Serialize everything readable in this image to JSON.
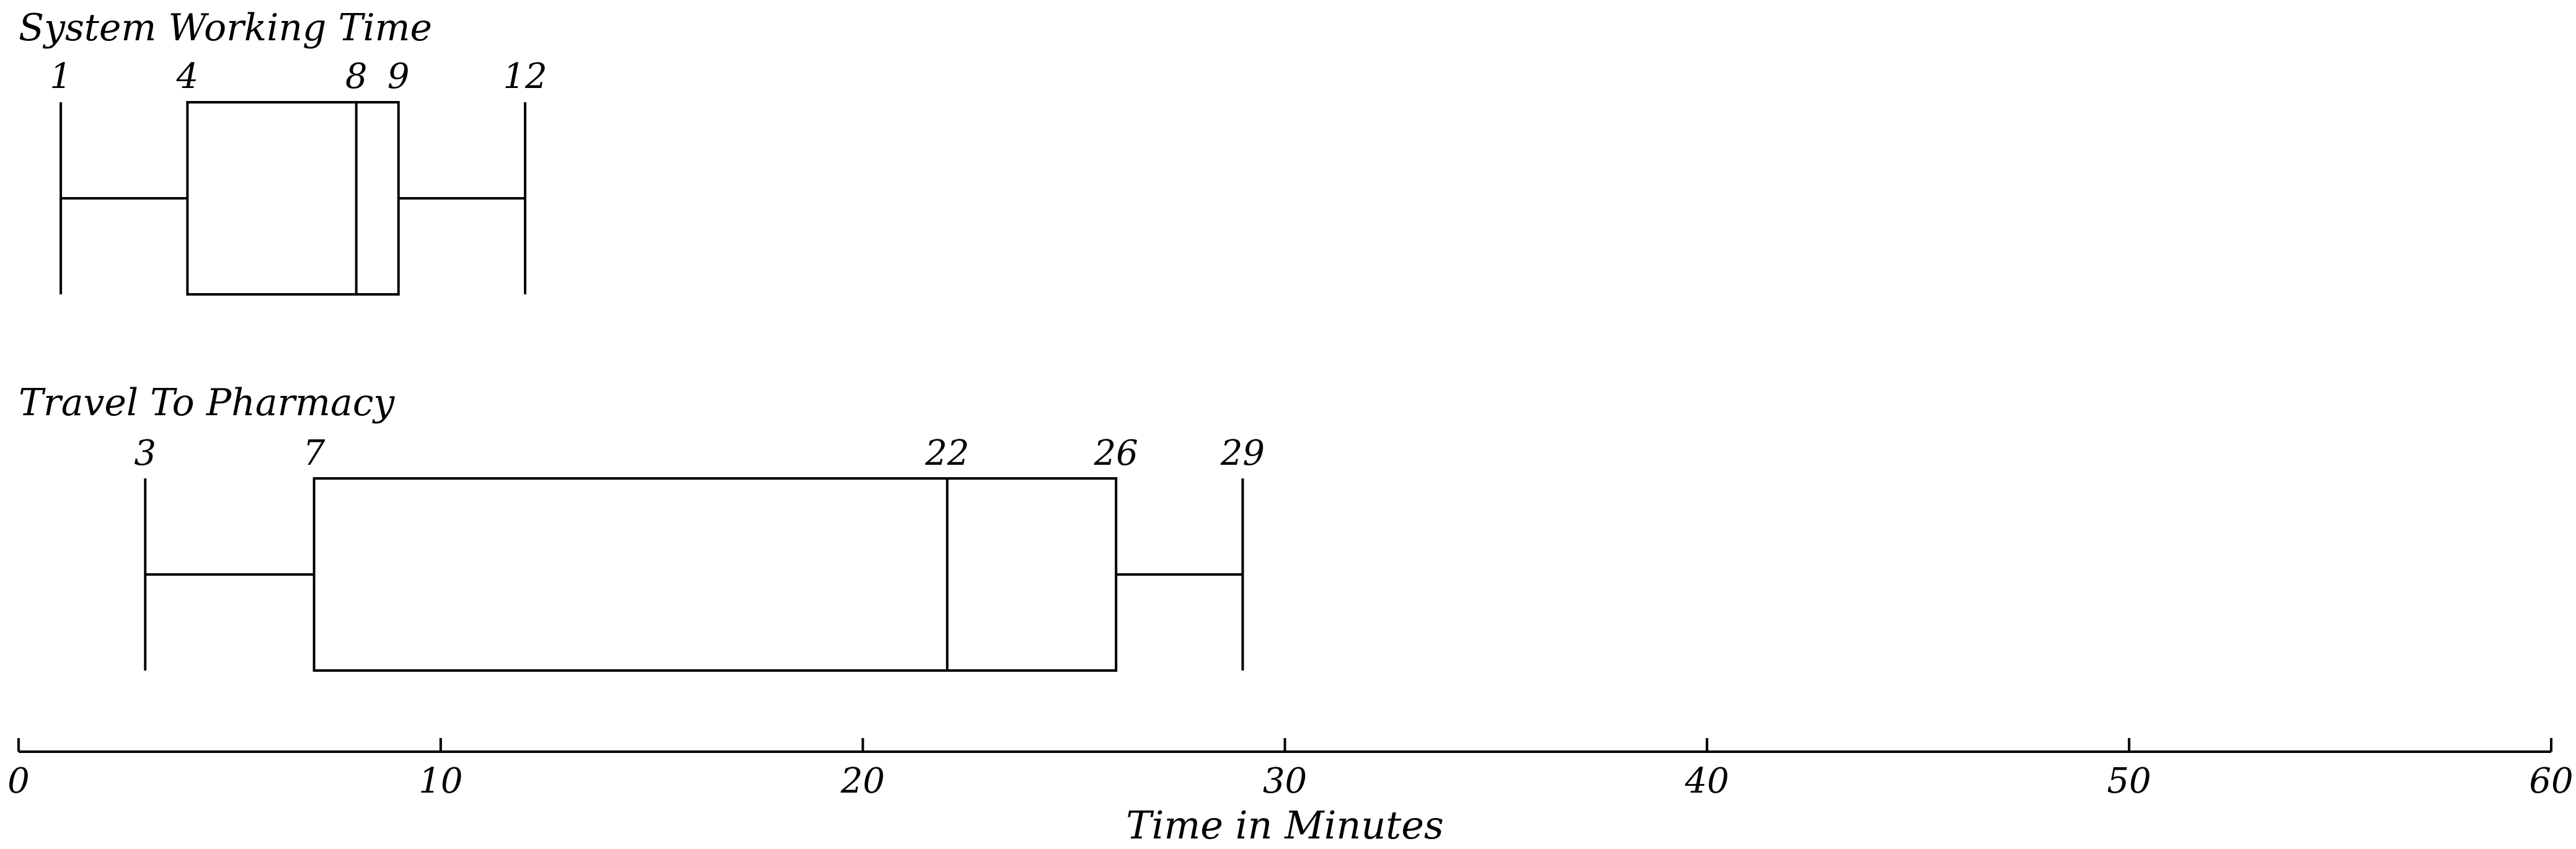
{
  "chart_data": {
    "type": "boxplot",
    "orientation": "horizontal",
    "xlabel": "Time in Minutes",
    "xlim": [
      0,
      60
    ],
    "xticks": [
      0,
      10,
      20,
      30,
      40,
      50,
      60
    ],
    "grid": false,
    "series": [
      {
        "name": "System Working Time",
        "min": 1,
        "q1": 4,
        "median": 8,
        "q3": 9,
        "max": 12,
        "labels": [
          "1",
          "4",
          "8",
          "9",
          "12"
        ]
      },
      {
        "name": "Travel To Pharmacy",
        "min": 3,
        "q1": 7,
        "median": 22,
        "q3": 26,
        "max": 29,
        "labels": [
          "3",
          "7",
          "22",
          "26",
          "29"
        ]
      }
    ],
    "colors": {
      "stroke": "#000000",
      "background": "#ffffff"
    }
  }
}
